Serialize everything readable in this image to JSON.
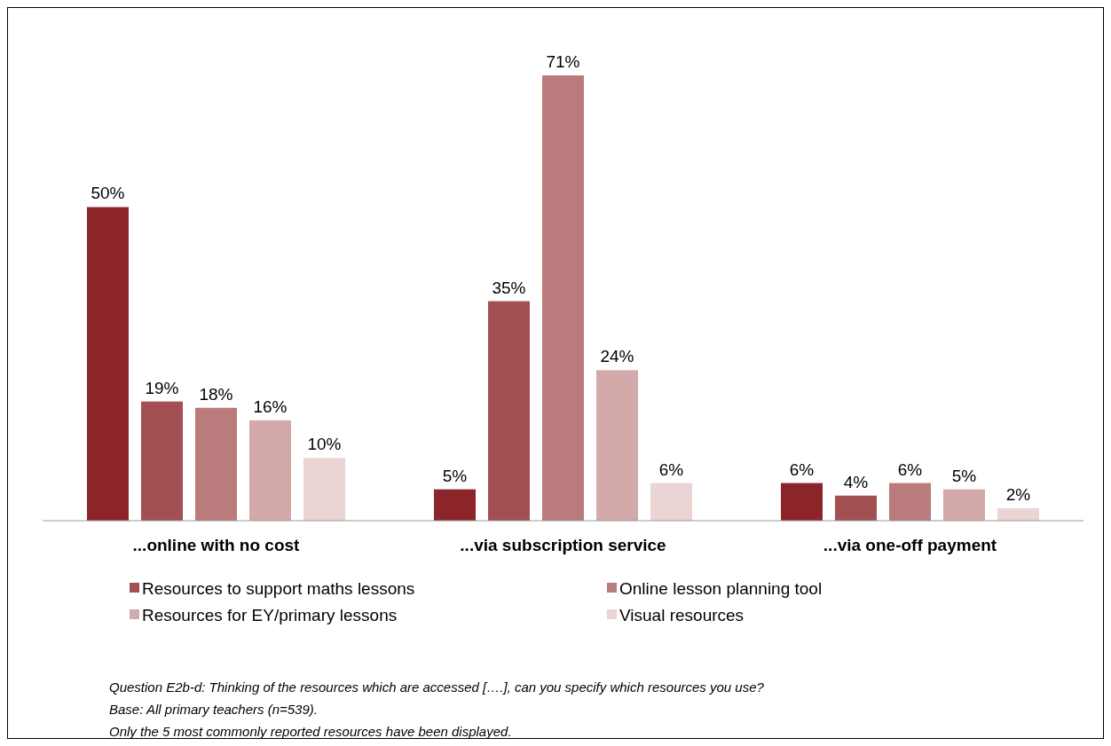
{
  "chart_data": {
    "type": "bar",
    "categories": [
      "...online with no cost",
      "...via subscription service",
      "...via one-off payment"
    ],
    "series": [
      {
        "color": "#8b2529",
        "values": [
          50,
          5,
          6
        ],
        "value_labels": [
          "50%",
          "5%",
          "6%"
        ]
      },
      {
        "name": "Resources to support maths lessons",
        "color": "#a35052",
        "values": [
          19,
          35,
          4
        ],
        "value_labels": [
          "19%",
          "35%",
          "4%"
        ]
      },
      {
        "name": "Online lesson planning tool",
        "color": "#b97b7b",
        "values": [
          18,
          71,
          6
        ],
        "value_labels": [
          "18%",
          "71%",
          "6%"
        ]
      },
      {
        "name": "Resources for EY/primary lessons",
        "color": "#d3a9a9",
        "values": [
          16,
          24,
          5
        ],
        "value_labels": [
          "16%",
          "24%",
          "5%"
        ]
      },
      {
        "name": "Visual resources",
        "color": "#ead4d4",
        "values": [
          10,
          6,
          2
        ],
        "value_labels": [
          "10%",
          "6%",
          "2%"
        ]
      }
    ],
    "legend": "bottom",
    "grid": false,
    "annotations": [
      "Question E2b-d: Thinking of the resources which are accessed [….], can you specify which resources you use?",
      "Base: All primary teachers (n=539).",
      "Only the 5 most commonly reported resources have been displayed."
    ]
  }
}
